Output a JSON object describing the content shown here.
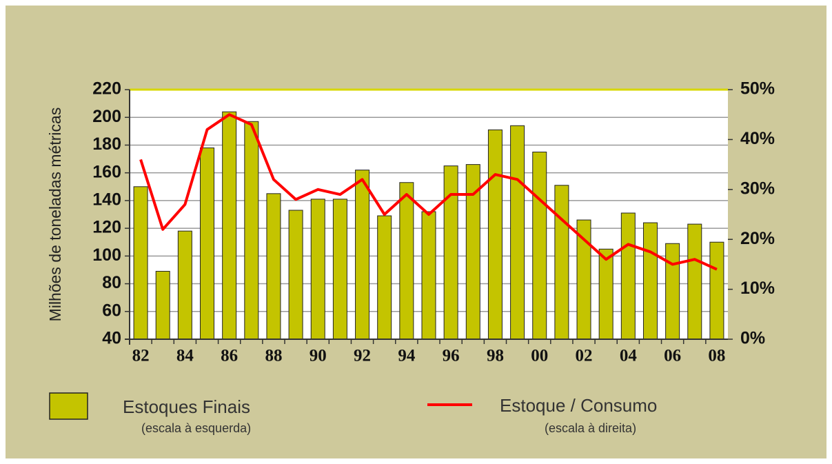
{
  "chart_data": {
    "type": "bar",
    "ylabel": "Milhões de toneladas métricas",
    "categories": [
      "82",
      null,
      "84",
      null,
      "86",
      null,
      "88",
      null,
      "90",
      null,
      "92",
      null,
      "94",
      null,
      "96",
      null,
      "98",
      null,
      "00",
      null,
      "02",
      null,
      "04",
      null,
      "06",
      null,
      "08"
    ],
    "series": [
      {
        "name": "Estoques Finais",
        "legend_note": "(escala à esquerda)",
        "type": "bar",
        "color": "#c4c400",
        "values": [
          150,
          89,
          118,
          178,
          204,
          197,
          145,
          133,
          141,
          141,
          162,
          129,
          153,
          132,
          165,
          166,
          191,
          194,
          175,
          151,
          126,
          105,
          131,
          124,
          109,
          123,
          110
        ]
      },
      {
        "name": "Estoque / Consumo",
        "legend_note": "(escala à direita)",
        "type": "line",
        "axis": "y2",
        "color": "#ff0000",
        "values": [
          36,
          22,
          27,
          42,
          45,
          43,
          32,
          28,
          30,
          29,
          32,
          25,
          29,
          25,
          29,
          29,
          33,
          32,
          28,
          24,
          20,
          16,
          19,
          17.5,
          15,
          16,
          14
        ]
      }
    ],
    "ylim": [
      40,
      220
    ],
    "yticks": [
      40,
      60,
      80,
      100,
      120,
      140,
      160,
      180,
      200,
      220
    ],
    "y2lim": [
      0,
      50
    ],
    "y2ticks": [
      {
        "value": 0,
        "label": "0%"
      },
      {
        "value": 10,
        "label": "10%"
      },
      {
        "value": 20,
        "label": "20%"
      },
      {
        "value": 30,
        "label": "30%"
      },
      {
        "value": 40,
        "label": "40%"
      },
      {
        "value": 50,
        "label": "50%"
      }
    ],
    "grid": true
  }
}
